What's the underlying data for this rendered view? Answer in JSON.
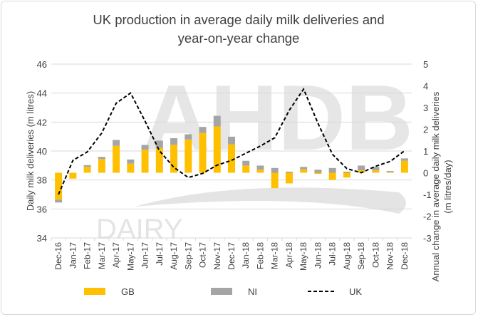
{
  "chart_data": {
    "type": "bar",
    "title_lines": [
      "UK production in average daily milk deliveries and",
      "year-on-year change"
    ],
    "ylabel_left": "Daily milk deliveries (m litres)",
    "ylabel_right_lines": [
      "Annual change in average daily milk deliveries",
      "(m litres/day)"
    ],
    "ylim_left": [
      34,
      46
    ],
    "yticks_left": [
      34,
      36,
      38,
      40,
      42,
      44,
      46
    ],
    "ylim_right": [
      -3,
      5
    ],
    "yticks_right": [
      -3,
      -2,
      -1,
      0,
      1,
      2,
      3,
      4,
      5
    ],
    "grid": true,
    "legend_position": "bottom",
    "watermark": [
      "AHDB",
      "DAIRY"
    ],
    "categories": [
      "Dec-16",
      "Jan-17",
      "Feb-17",
      "Mar-17",
      "Apr-17",
      "May-17",
      "Jun-17",
      "Jul-17",
      "Aug-17",
      "Sep-17",
      "Oct-17",
      "Nov-17",
      "Dec-17",
      "Jan-18",
      "Feb-18",
      "Mar-18",
      "Apr-18",
      "May-18",
      "Jun-18",
      "Jul-18",
      "Aug-18",
      "Sep-18",
      "Oct-18",
      "Nov-18",
      "Dec-18"
    ],
    "series": [
      {
        "name": "GB",
        "kind": "stacked-bar",
        "axis": "right",
        "color": "#FFC000",
        "values": [
          -1.24,
          -0.27,
          0.27,
          0.63,
          1.24,
          0.42,
          1.06,
          1.14,
          1.29,
          1.53,
          1.83,
          2.13,
          1.31,
          0.33,
          0.14,
          -0.71,
          -0.49,
          0.16,
          -0.05,
          -0.33,
          -0.22,
          0.11,
          0.11,
          0.03,
          0.55
        ]
      },
      {
        "name": "NI",
        "kind": "stacked-bar",
        "axis": "right",
        "color": "#A5A5A5",
        "values": [
          -0.13,
          0.0,
          0.08,
          0.1,
          0.27,
          0.19,
          0.22,
          0.34,
          0.3,
          0.24,
          0.28,
          0.49,
          0.35,
          0.22,
          0.19,
          0.22,
          0.05,
          0.11,
          0.14,
          0.22,
          0.05,
          0.22,
          0.16,
          0.05,
          0.11
        ]
      },
      {
        "name": "UK",
        "kind": "line",
        "axis": "right",
        "color": "#000000",
        "values": [
          -1.0,
          0.57,
          0.96,
          1.83,
          3.2,
          3.67,
          2.38,
          1.01,
          0.25,
          -0.22,
          -0.03,
          0.35,
          0.57,
          0.9,
          1.23,
          1.61,
          2.87,
          3.85,
          2.27,
          0.85,
          0.19,
          0.0,
          0.3,
          0.52,
          1.01
        ]
      }
    ]
  }
}
